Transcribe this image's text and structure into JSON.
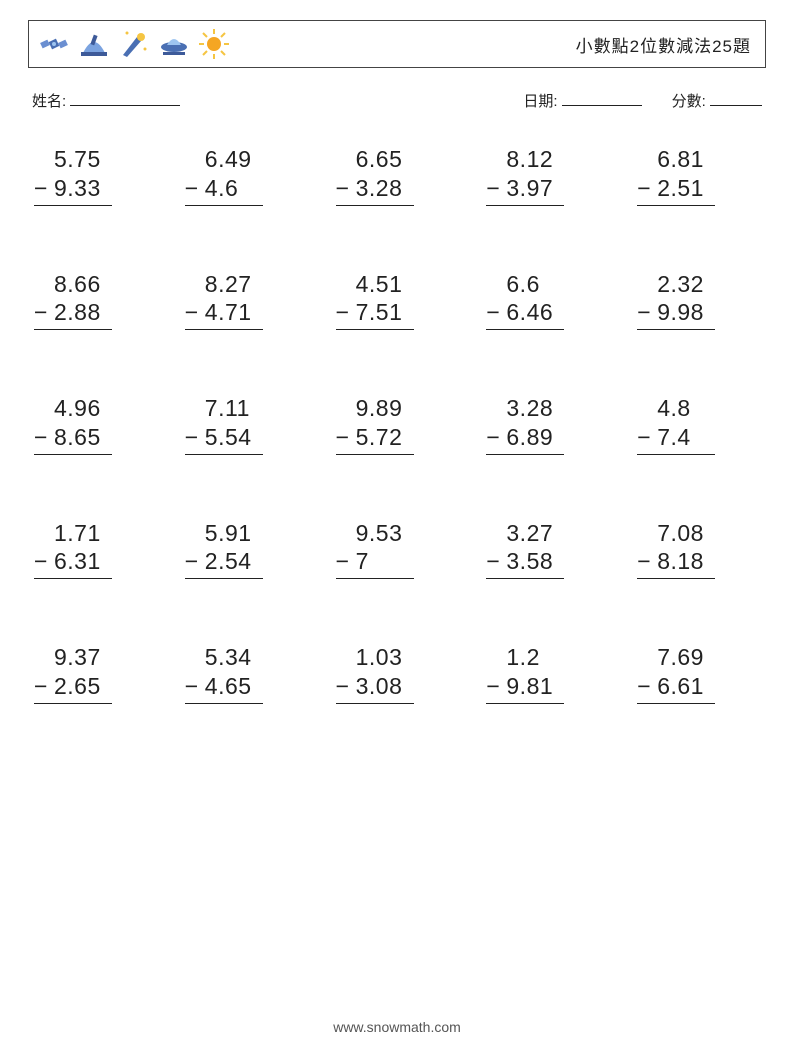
{
  "header": {
    "title": "小數點2位數減法25題",
    "icon_colors": {
      "satellite_body": "#4a6fb3",
      "satellite_panel": "#6b8fd1",
      "dome_base": "#3d5a99",
      "dome_top": "#7ba3e0",
      "rocket_body": "#4a6fb3",
      "rocket_flame": "#f5a623",
      "star": "#f5c542",
      "ufo_base": "#4a6fb3",
      "ufo_dome": "#9ec5f0",
      "sun_core": "#f5a623",
      "sun_ray": "#f5c542"
    }
  },
  "meta": {
    "name_label": "姓名:",
    "date_label": "日期:",
    "score_label": "分數:",
    "name_line_w": 110,
    "date_line_w": 80,
    "score_line_w": 52
  },
  "worksheet": {
    "operator": "−",
    "font_size": 23,
    "text_color": "#222222",
    "rule_color": "#222222",
    "columns": 5,
    "rows": 5,
    "problems": [
      {
        "a": "5.75",
        "b": "9.33"
      },
      {
        "a": "6.49",
        "b": "4.6"
      },
      {
        "a": "6.65",
        "b": "3.28"
      },
      {
        "a": "8.12",
        "b": "3.97"
      },
      {
        "a": "6.81",
        "b": "2.51"
      },
      {
        "a": "8.66",
        "b": "2.88"
      },
      {
        "a": "8.27",
        "b": "4.71"
      },
      {
        "a": "4.51",
        "b": "7.51"
      },
      {
        "a": "6.6",
        "b": "6.46"
      },
      {
        "a": "2.32",
        "b": "9.98"
      },
      {
        "a": "4.96",
        "b": "8.65"
      },
      {
        "a": "7.11",
        "b": "5.54"
      },
      {
        "a": "9.89",
        "b": "5.72"
      },
      {
        "a": "3.28",
        "b": "6.89"
      },
      {
        "a": "4.8",
        "b": "7.4"
      },
      {
        "a": "1.71",
        "b": "6.31"
      },
      {
        "a": "5.91",
        "b": "2.54"
      },
      {
        "a": "9.53",
        "b": "7"
      },
      {
        "a": "3.27",
        "b": "3.58"
      },
      {
        "a": "7.08",
        "b": "8.18"
      },
      {
        "a": "9.37",
        "b": "2.65"
      },
      {
        "a": "5.34",
        "b": "4.65"
      },
      {
        "a": "1.03",
        "b": "3.08"
      },
      {
        "a": "1.2",
        "b": "9.81"
      },
      {
        "a": "7.69",
        "b": "6.61"
      }
    ]
  },
  "footer": {
    "text": "www.snowmath.com"
  }
}
